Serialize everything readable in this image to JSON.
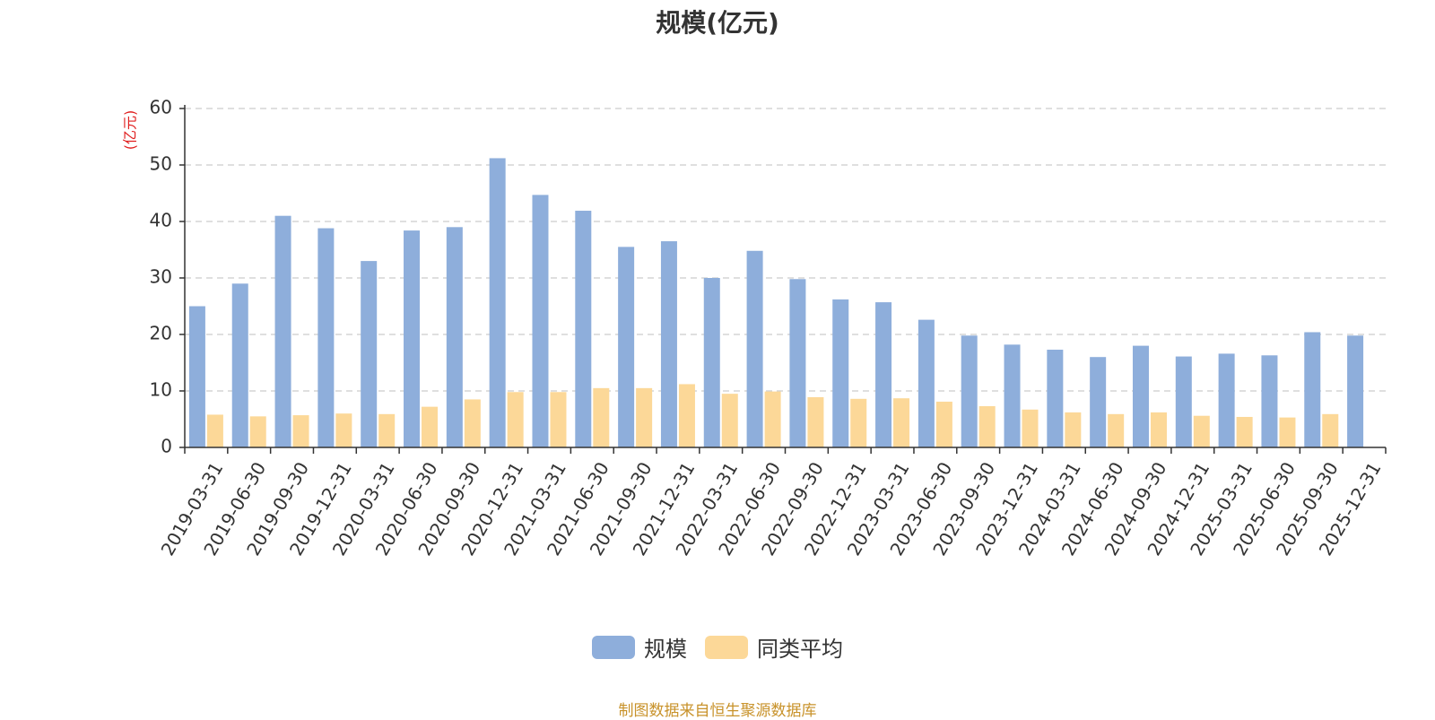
{
  "chart_data": {
    "type": "bar",
    "title": "规模(亿元)",
    "ylabel": "(亿元)",
    "ylim": [
      0,
      60
    ],
    "yticks": [
      0,
      10,
      20,
      30,
      40,
      50,
      60
    ],
    "grid": true,
    "legend_position": "bottom",
    "categories": [
      "2019-03-31",
      "2019-06-30",
      "2019-09-30",
      "2019-12-31",
      "2020-03-31",
      "2020-06-30",
      "2020-09-30",
      "2020-12-31",
      "2021-03-31",
      "2021-06-30",
      "2021-09-30",
      "2021-12-31",
      "2022-03-31",
      "2022-06-30",
      "2022-09-30",
      "2022-12-31",
      "2023-03-31",
      "2023-06-30",
      "2023-09-30",
      "2023-12-31",
      "2024-03-31",
      "2024-06-30",
      "2024-09-30",
      "2024-12-31",
      "2025-03-31",
      "2025-06-30",
      "2025-09-30",
      "2025-12-31"
    ],
    "series": [
      {
        "name": "规模",
        "color": "#8eaedb",
        "values": [
          25.0,
          29.0,
          41.0,
          38.8,
          33.0,
          38.4,
          39.0,
          51.2,
          44.7,
          41.9,
          35.5,
          36.5,
          30.0,
          34.8,
          29.8,
          26.2,
          25.7,
          22.6,
          19.8,
          18.2,
          17.3,
          16.0,
          18.0,
          16.1,
          16.6,
          16.3,
          20.4,
          19.8
        ]
      },
      {
        "name": "同类平均",
        "color": "#fcd898",
        "values": [
          5.8,
          5.5,
          5.7,
          6.0,
          5.9,
          7.2,
          8.5,
          9.8,
          9.8,
          10.5,
          10.5,
          11.2,
          9.5,
          9.9,
          8.9,
          8.6,
          8.7,
          8.1,
          7.3,
          6.7,
          6.2,
          5.9,
          6.2,
          5.6,
          5.4,
          5.3,
          5.9,
          null
        ]
      }
    ]
  },
  "source_note": "制图数据来自恒生聚源数据库"
}
